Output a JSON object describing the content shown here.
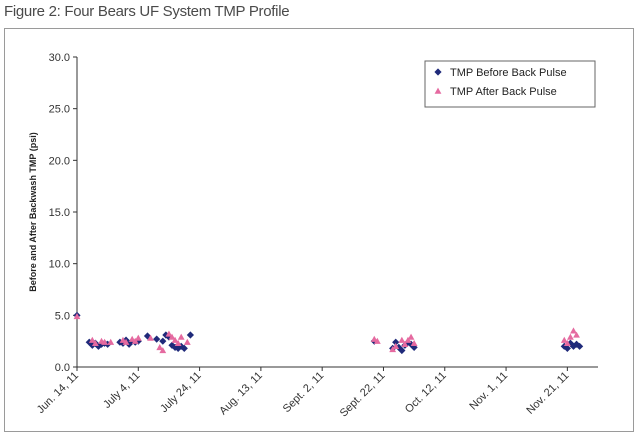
{
  "figure_title": "Figure 2: Four Bears UF System TMP Profile",
  "chart_data": {
    "type": "scatter",
    "title": "Figure 2: Four Bears UF System TMP Profile",
    "xlabel": "",
    "ylabel": "Before and After Backwash TMP (psi)",
    "ylim": [
      0,
      30
    ],
    "yticks": [
      "0.0",
      "5.0",
      "10.0",
      "15.0",
      "20.0",
      "25.0",
      "30.0"
    ],
    "x_tick_labels": [
      "Jun. 14, 11",
      "July 4, 11",
      "July 24, 11",
      "Aug. 13, 11",
      "Sept. 2, 11",
      "Sept. 22, 11",
      "Oct. 12, 11",
      "Nov. 1, 11",
      "Nov. 21, 11"
    ],
    "x_tick_days": [
      0,
      20,
      40,
      60,
      80,
      100,
      120,
      140,
      160
    ],
    "xlim": [
      0,
      170
    ],
    "x_unit": "days after Jun. 14, 11",
    "grid": false,
    "legend_position": "top-right",
    "series": [
      {
        "name": "TMP Before Back Pulse",
        "marker": "diamond",
        "color": "#1f2a7a",
        "x": [
          0,
          4,
          5,
          6,
          7,
          8,
          9,
          10,
          14,
          15,
          16,
          17,
          18,
          19,
          20,
          23,
          26,
          28,
          29,
          30,
          31,
          32,
          33,
          34,
          35,
          37,
          97,
          103,
          104,
          105,
          106,
          107,
          108,
          109,
          110,
          159,
          160,
          161,
          162,
          163,
          164
        ],
        "y": [
          5.0,
          2.4,
          2.1,
          2.3,
          2.0,
          2.2,
          2.3,
          2.2,
          2.4,
          2.3,
          2.6,
          2.2,
          2.5,
          2.4,
          2.5,
          3.0,
          2.7,
          2.5,
          3.1,
          2.9,
          2.1,
          1.9,
          1.8,
          2.0,
          1.8,
          3.1,
          2.5,
          1.8,
          2.4,
          1.9,
          1.6,
          2.1,
          2.4,
          2.2,
          1.9,
          2.0,
          1.8,
          2.3,
          2.0,
          2.2,
          2.0
        ]
      },
      {
        "name": "TMP After Back Pulse",
        "marker": "triangle",
        "color": "#e56aa0",
        "x": [
          0,
          5,
          6,
          8,
          9,
          11,
          15,
          16,
          18,
          19,
          20,
          24,
          27,
          28,
          30,
          31,
          32,
          33,
          34,
          36,
          97,
          98,
          103,
          104,
          106,
          107,
          108,
          109,
          110,
          159,
          160,
          161,
          162,
          163
        ],
        "y": [
          4.9,
          2.6,
          2.3,
          2.5,
          2.4,
          2.4,
          2.6,
          2.4,
          2.7,
          2.5,
          2.8,
          2.8,
          1.9,
          1.6,
          3.2,
          2.9,
          2.6,
          2.3,
          2.9,
          2.4,
          2.7,
          2.5,
          1.7,
          2.0,
          2.6,
          2.2,
          2.6,
          2.9,
          2.3,
          2.6,
          2.3,
          2.9,
          3.5,
          3.1
        ]
      }
    ]
  }
}
